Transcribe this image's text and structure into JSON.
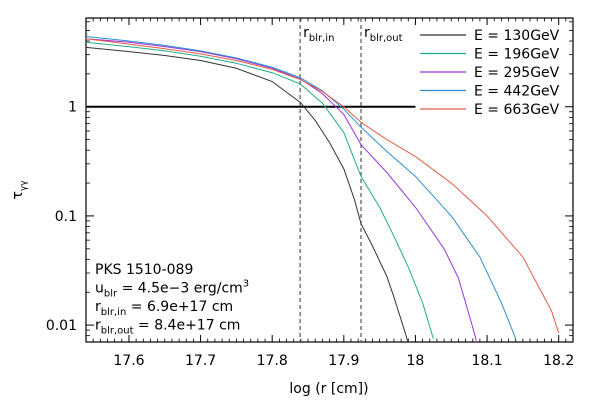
{
  "chart_data": {
    "type": "line",
    "title": "",
    "xlabel": "log (r [cm])",
    "ylabel_main": "τ",
    "ylabel_sub": "γγ",
    "xlim": [
      17.54,
      18.22
    ],
    "ylim": [
      0.007,
      6.5
    ],
    "yscale": "log",
    "x_ticks": [
      17.6,
      17.7,
      17.8,
      17.9,
      18.0,
      18.1,
      18.2
    ],
    "x_tick_labels": [
      "17.6",
      "17.7",
      "17.8",
      "17.9",
      "18",
      "18.1",
      "18.2"
    ],
    "y_ticks": [
      0.01,
      0.1,
      1
    ],
    "y_tick_labels": [
      "0.01",
      "0.1",
      "1"
    ],
    "reference_line": {
      "y": 1,
      "x_start": 17.54,
      "x_end": 18.0,
      "color": "#000000"
    },
    "vlines": [
      {
        "x": 17.839,
        "label_main": "r",
        "label_sub": "blr,in"
      },
      {
        "x": 17.924,
        "label_main": "r",
        "label_sub": "blr,out"
      }
    ],
    "legend_position": "top-right",
    "series": [
      {
        "name": "E = 130GeV",
        "color": "#333333",
        "points": [
          [
            17.54,
            3.5
          ],
          [
            17.6,
            3.2
          ],
          [
            17.65,
            2.95
          ],
          [
            17.7,
            2.65
          ],
          [
            17.75,
            2.25
          ],
          [
            17.8,
            1.7
          ],
          [
            17.839,
            1.1
          ],
          [
            17.86,
            0.75
          ],
          [
            17.88,
            0.47
          ],
          [
            17.9,
            0.27
          ],
          [
            17.915,
            0.14
          ],
          [
            17.924,
            0.085
          ],
          [
            17.94,
            0.053
          ],
          [
            17.96,
            0.028
          ],
          [
            17.97,
            0.018
          ],
          [
            17.985,
            0.0088
          ],
          [
            17.99,
            0.0068
          ]
        ]
      },
      {
        "name": "E = 196GeV",
        "color": "#1fad8a",
        "points": [
          [
            17.54,
            3.9
          ],
          [
            17.6,
            3.55
          ],
          [
            17.65,
            3.25
          ],
          [
            17.7,
            2.9
          ],
          [
            17.75,
            2.5
          ],
          [
            17.8,
            2.05
          ],
          [
            17.839,
            1.62
          ],
          [
            17.87,
            1.08
          ],
          [
            17.9,
            0.58
          ],
          [
            17.924,
            0.23
          ],
          [
            17.95,
            0.12
          ],
          [
            17.97,
            0.065
          ],
          [
            17.99,
            0.034
          ],
          [
            18.01,
            0.016
          ],
          [
            18.025,
            0.0075
          ]
        ]
      },
      {
        "name": "E = 295GeV",
        "color": "#9933dd",
        "points": [
          [
            17.54,
            4.2
          ],
          [
            17.6,
            3.9
          ],
          [
            17.65,
            3.55
          ],
          [
            17.7,
            3.2
          ],
          [
            17.75,
            2.75
          ],
          [
            17.8,
            2.25
          ],
          [
            17.839,
            1.8
          ],
          [
            17.87,
            1.32
          ],
          [
            17.9,
            0.85
          ],
          [
            17.924,
            0.45
          ],
          [
            17.96,
            0.25
          ],
          [
            18.0,
            0.12
          ],
          [
            18.04,
            0.05
          ],
          [
            18.06,
            0.027
          ],
          [
            18.08,
            0.0095
          ],
          [
            18.085,
            0.0072
          ]
        ]
      },
      {
        "name": "E = 442GeV",
        "color": "#2b8fd0",
        "points": [
          [
            17.54,
            4.4
          ],
          [
            17.6,
            4.0
          ],
          [
            17.65,
            3.65
          ],
          [
            17.7,
            3.25
          ],
          [
            17.75,
            2.8
          ],
          [
            17.8,
            2.3
          ],
          [
            17.839,
            1.85
          ],
          [
            17.87,
            1.4
          ],
          [
            17.9,
            0.95
          ],
          [
            17.924,
            0.65
          ],
          [
            17.96,
            0.39
          ],
          [
            18.0,
            0.23
          ],
          [
            18.05,
            0.1
          ],
          [
            18.09,
            0.042
          ],
          [
            18.12,
            0.016
          ],
          [
            18.14,
            0.0075
          ]
        ]
      },
      {
        "name": "E = 663GeV",
        "color": "#e35d45",
        "points": [
          [
            17.54,
            4.2
          ],
          [
            17.6,
            3.75
          ],
          [
            17.65,
            3.4
          ],
          [
            17.7,
            3.05
          ],
          [
            17.75,
            2.65
          ],
          [
            17.8,
            2.2
          ],
          [
            17.839,
            1.78
          ],
          [
            17.87,
            1.38
          ],
          [
            17.9,
            1.0
          ],
          [
            17.924,
            0.72
          ],
          [
            17.96,
            0.5
          ],
          [
            18.0,
            0.35
          ],
          [
            18.05,
            0.2
          ],
          [
            18.1,
            0.1
          ],
          [
            18.15,
            0.042
          ],
          [
            18.19,
            0.0135
          ],
          [
            18.2,
            0.0085
          ]
        ]
      }
    ],
    "annotations": [
      {
        "parts": [
          "PKS 1510-089"
        ]
      },
      {
        "parts": [
          "u",
          "blr",
          " = 4.5e−3 erg/cm",
          "3"
        ]
      },
      {
        "parts": [
          "r",
          "blr,in",
          " = 6.9e+17 cm"
        ]
      },
      {
        "parts": [
          "r",
          "blr,out",
          " = 8.4e+17 cm"
        ]
      }
    ]
  }
}
